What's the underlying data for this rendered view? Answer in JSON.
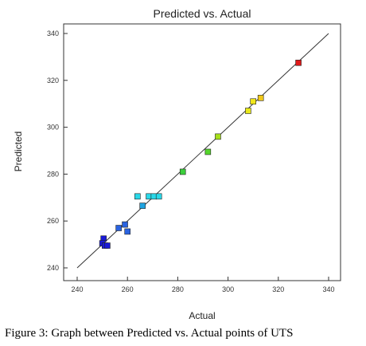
{
  "figure": {
    "caption": "Figure 3: Graph between Predicted vs. Actual points of UTS"
  },
  "chart_data": {
    "type": "scatter",
    "title": "Predicted vs. Actual",
    "xlabel": "Actual",
    "ylabel": "Predicted",
    "xlim": [
      240,
      340
    ],
    "ylim": [
      240,
      340
    ],
    "xticks": [
      240,
      260,
      280,
      300,
      320,
      340
    ],
    "yticks": [
      240,
      260,
      280,
      300,
      320,
      340
    ],
    "grid": false,
    "reference_line": {
      "from": [
        240,
        240
      ],
      "to": [
        340,
        340
      ],
      "color": "#333333"
    },
    "marker": "square",
    "points": [
      {
        "x": 250.5,
        "y": 252.5,
        "color": "#1a1ad6"
      },
      {
        "x": 250.0,
        "y": 250.5,
        "color": "#1a1ad6"
      },
      {
        "x": 251.0,
        "y": 249.5,
        "color": "#1a1ad6"
      },
      {
        "x": 252.0,
        "y": 249.5,
        "color": "#1a1ad6"
      },
      {
        "x": 256.5,
        "y": 257.0,
        "color": "#2a63e0"
      },
      {
        "x": 259.0,
        "y": 258.5,
        "color": "#2a63e0"
      },
      {
        "x": 260.0,
        "y": 255.5,
        "color": "#2a63e0"
      },
      {
        "x": 266.0,
        "y": 266.5,
        "color": "#1fa3e0"
      },
      {
        "x": 264.0,
        "y": 270.5,
        "color": "#2ad8e8"
      },
      {
        "x": 268.5,
        "y": 270.5,
        "color": "#2ad8e8"
      },
      {
        "x": 270.5,
        "y": 270.5,
        "color": "#2ad8e8"
      },
      {
        "x": 272.5,
        "y": 270.5,
        "color": "#2ad8e8"
      },
      {
        "x": 282.0,
        "y": 281.0,
        "color": "#3ccf3c"
      },
      {
        "x": 292.0,
        "y": 289.5,
        "color": "#55d62c"
      },
      {
        "x": 296.0,
        "y": 296.0,
        "color": "#a6e01a"
      },
      {
        "x": 308.0,
        "y": 307.0,
        "color": "#e8e81a"
      },
      {
        "x": 310.0,
        "y": 311.0,
        "color": "#f0e61a"
      },
      {
        "x": 313.0,
        "y": 312.5,
        "color": "#f0c81a"
      },
      {
        "x": 328.0,
        "y": 327.5,
        "color": "#e01a1a"
      }
    ]
  }
}
